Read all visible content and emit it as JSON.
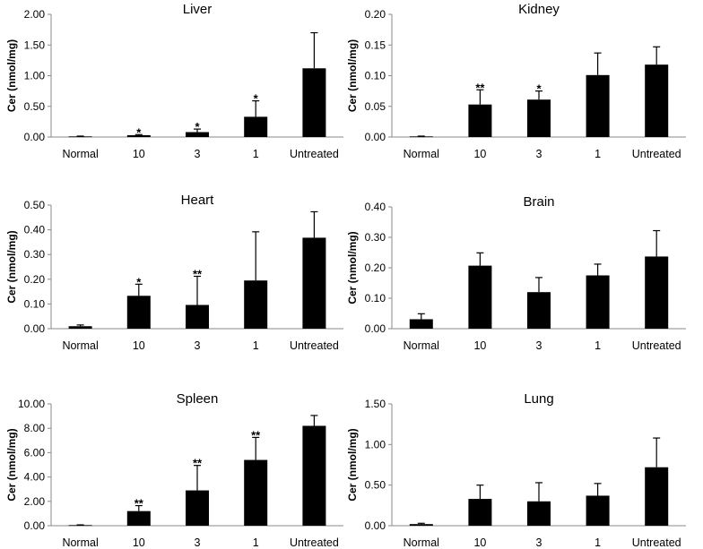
{
  "chart_data": [
    {
      "type": "bar",
      "title": "Liver",
      "ylabel": "Cer (nmol/mg)",
      "categories": [
        "Normal",
        "10",
        "3",
        "1",
        "Untreated"
      ],
      "values": [
        0.01,
        0.03,
        0.08,
        0.33,
        1.12
      ],
      "errors": [
        0.005,
        0.01,
        0.05,
        0.26,
        0.58
      ],
      "significance": [
        "",
        "*",
        "*",
        "*",
        ""
      ],
      "ylim": [
        0,
        2.0
      ],
      "yticks": [
        "0.00",
        "0.50",
        "1.00",
        "1.50",
        "2.00"
      ],
      "bar_color": "#000000"
    },
    {
      "type": "bar",
      "title": "Kidney",
      "ylabel": "Cer (nmol/mg)",
      "categories": [
        "Normal",
        "10",
        "3",
        "1",
        "Untreated"
      ],
      "values": [
        0.001,
        0.053,
        0.061,
        0.101,
        0.118
      ],
      "errors": [
        0.0005,
        0.024,
        0.014,
        0.036,
        0.029
      ],
      "significance": [
        "",
        "**",
        "*",
        "",
        ""
      ],
      "ylim": [
        0,
        0.2
      ],
      "yticks": [
        "0.00",
        "0.05",
        "0.10",
        "0.15",
        "0.20"
      ],
      "bar_color": "#000000"
    },
    {
      "type": "bar",
      "title": "Heart",
      "ylabel": "Cer (nmol/mg)",
      "categories": [
        "Normal",
        "10",
        "3",
        "1",
        "Untreated"
      ],
      "values": [
        0.01,
        0.133,
        0.096,
        0.195,
        0.368
      ],
      "errors": [
        0.005,
        0.047,
        0.116,
        0.197,
        0.105
      ],
      "significance": [
        "",
        "*",
        "**",
        "",
        ""
      ],
      "ylim": [
        0,
        0.5
      ],
      "yticks": [
        "0.00",
        "0.10",
        "0.20",
        "0.30",
        "0.40",
        "0.50"
      ],
      "bar_color": "#000000"
    },
    {
      "type": "bar",
      "title": "Brain",
      "ylabel": "Cer (nmol/mg)",
      "categories": [
        "Normal",
        "10",
        "3",
        "1",
        "Untreated"
      ],
      "values": [
        0.031,
        0.207,
        0.12,
        0.175,
        0.237
      ],
      "errors": [
        0.018,
        0.042,
        0.048,
        0.037,
        0.085
      ],
      "significance": [
        "",
        "",
        "",
        "",
        ""
      ],
      "ylim": [
        0,
        0.4
      ],
      "yticks": [
        "0.00",
        "0.10",
        "0.20",
        "0.30",
        "0.40"
      ],
      "bar_color": "#000000"
    },
    {
      "type": "bar",
      "title": "Spleen",
      "ylabel": "Cer (nmol/mg)",
      "categories": [
        "Normal",
        "10",
        "3",
        "1",
        "Untreated"
      ],
      "values": [
        0.05,
        1.2,
        2.9,
        5.4,
        8.2
      ],
      "errors": [
        0.02,
        0.45,
        2.05,
        1.85,
        0.85
      ],
      "significance": [
        "",
        "**",
        "**",
        "**",
        ""
      ],
      "ylim": [
        0,
        10
      ],
      "yticks": [
        "0.00",
        "2.00",
        "4.00",
        "6.00",
        "8.00",
        "10.00"
      ],
      "bar_color": "#000000"
    },
    {
      "type": "bar",
      "title": "Lung",
      "ylabel": "Cer (nmol/mg)",
      "categories": [
        "Normal",
        "10",
        "3",
        "1",
        "Untreated"
      ],
      "values": [
        0.02,
        0.33,
        0.3,
        0.37,
        0.72
      ],
      "errors": [
        0.01,
        0.17,
        0.23,
        0.15,
        0.36
      ],
      "significance": [
        "",
        "",
        "",
        "",
        ""
      ],
      "ylim": [
        0,
        1.5
      ],
      "yticks": [
        "0.00",
        "0.50",
        "1.00",
        "1.50"
      ],
      "bar_color": "#000000"
    }
  ]
}
